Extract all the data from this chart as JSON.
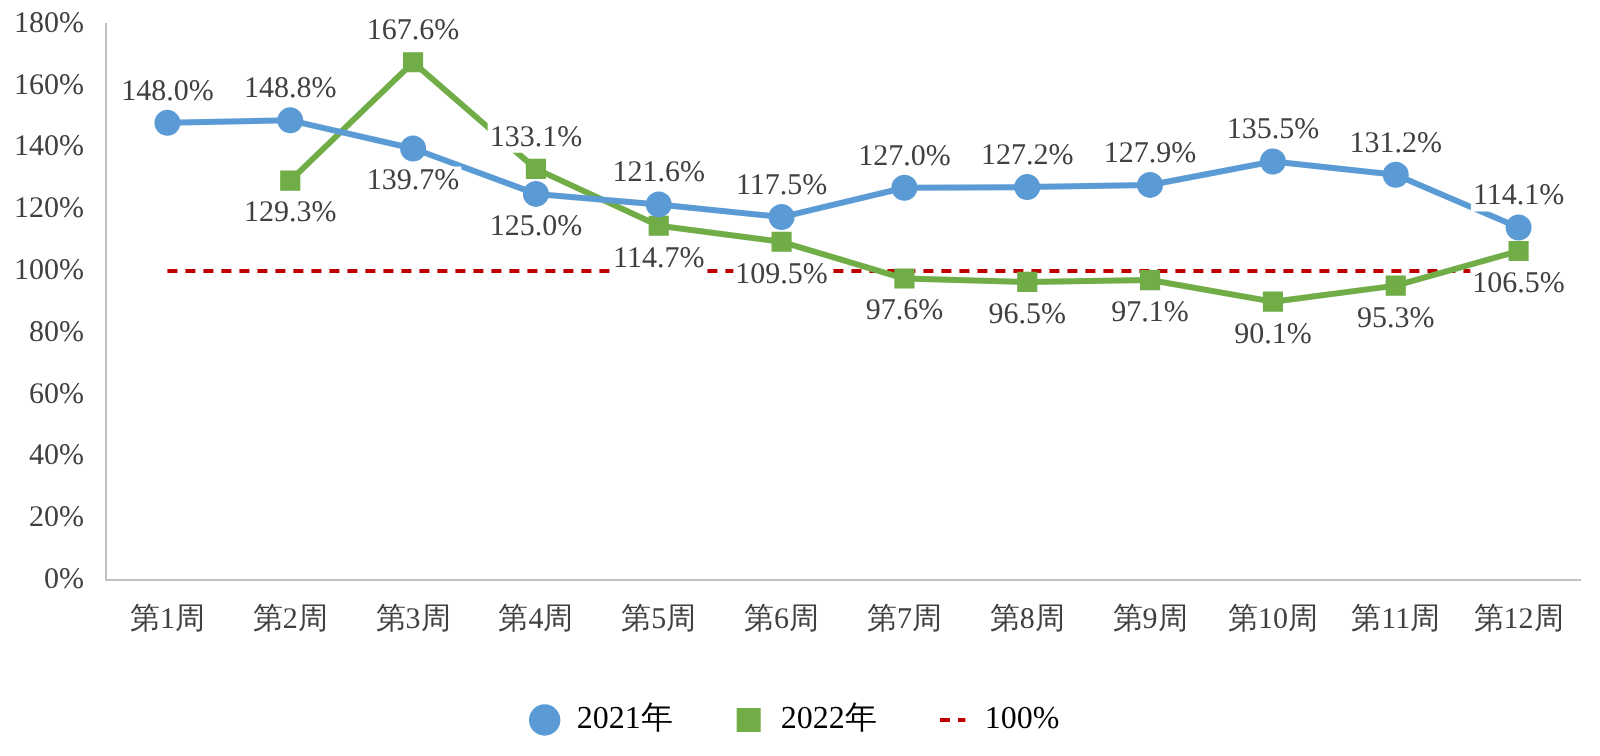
{
  "chart_data": {
    "type": "line",
    "categories": [
      "第1周",
      "第2周",
      "第3周",
      "第4周",
      "第5周",
      "第6周",
      "第7周",
      "第8周",
      "第9周",
      "第10周",
      "第11周",
      "第12周"
    ],
    "series": [
      {
        "name": "2021年",
        "color": "#5b9bd5",
        "marker": "circle",
        "values": [
          148.0,
          148.8,
          139.7,
          125.0,
          121.6,
          117.5,
          127.0,
          127.2,
          127.9,
          135.5,
          131.2,
          114.1
        ],
        "value_labels": [
          "148.0%",
          "148.8%",
          "139.7%",
          "125.0%",
          "121.6%",
          "117.5%",
          "127.0%",
          "127.2%",
          "127.9%",
          "135.5%",
          "131.2%",
          "114.1%"
        ]
      },
      {
        "name": "2022年",
        "color": "#70ad47",
        "marker": "square",
        "values": [
          null,
          129.3,
          167.6,
          133.1,
          114.7,
          109.5,
          97.6,
          96.5,
          97.1,
          90.1,
          95.3,
          106.5
        ],
        "value_labels": [
          null,
          "129.3%",
          "167.6%",
          "133.1%",
          "114.7%",
          "109.5%",
          "97.6%",
          "96.5%",
          "97.1%",
          "90.1%",
          "95.3%",
          "106.5%"
        ]
      }
    ],
    "ylim": [
      0,
      180
    ],
    "yticks": [
      {
        "value": 0,
        "label": "0%"
      },
      {
        "value": 20,
        "label": "20%"
      },
      {
        "value": 40,
        "label": "40%"
      },
      {
        "value": 60,
        "label": "60%"
      },
      {
        "value": 80,
        "label": "80%"
      },
      {
        "value": 100,
        "label": "100%"
      },
      {
        "value": 120,
        "label": "120%"
      },
      {
        "value": 140,
        "label": "140%"
      },
      {
        "value": 160,
        "label": "160%"
      },
      {
        "value": 180,
        "label": "180%"
      }
    ],
    "ref_lines": [
      {
        "axis": "y",
        "value": 100,
        "label": "100%",
        "color": "#c00000",
        "line_style": "dashed"
      }
    ],
    "legend": "bottom"
  }
}
